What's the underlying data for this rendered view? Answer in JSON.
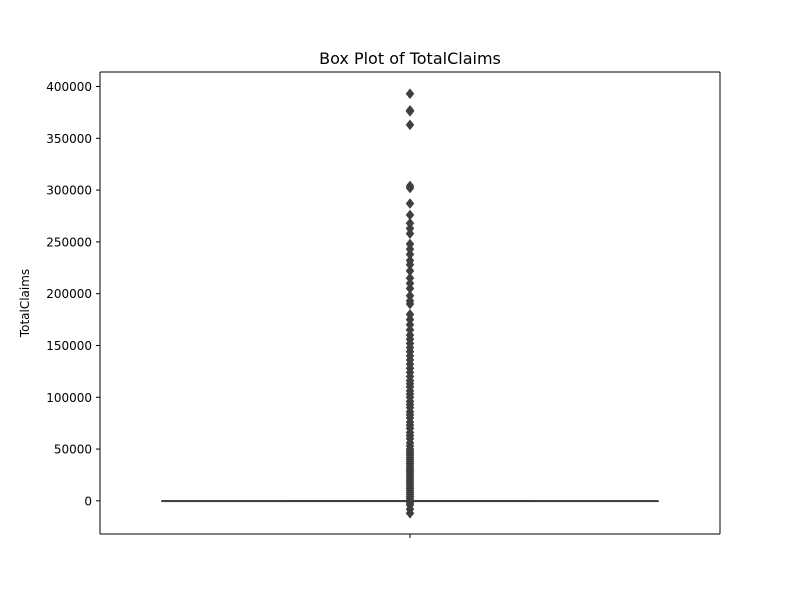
{
  "chart_data": {
    "type": "box",
    "title": "Box Plot of TotalClaims",
    "xlabel": "",
    "ylabel": "TotalClaims",
    "ylim": [
      -32000,
      414000
    ],
    "yticks": [
      0,
      50000,
      100000,
      150000,
      200000,
      250000,
      300000,
      350000,
      400000
    ],
    "ytick_labels": [
      "0",
      "50000",
      "100000",
      "150000",
      "200000",
      "250000",
      "300000",
      "350000",
      "400000"
    ],
    "xticks": [
      ""
    ],
    "grid": false,
    "legend": false,
    "box": {
      "q1": 0,
      "median": 0,
      "q3": 0,
      "whisker_low": 0,
      "whisker_high": 0
    },
    "outliers": [
      -12000,
      -8000,
      -4000,
      -2000,
      2000,
      4000,
      6000,
      8000,
      10000,
      12000,
      14000,
      16000,
      18000,
      20000,
      22000,
      24000,
      26000,
      28000,
      30000,
      32000,
      34000,
      36000,
      38000,
      40000,
      42000,
      44000,
      46000,
      48000,
      50000,
      53000,
      56000,
      60000,
      63000,
      66000,
      70000,
      73000,
      76000,
      80000,
      83000,
      86000,
      90000,
      93000,
      96000,
      100000,
      103000,
      106000,
      110000,
      113000,
      116000,
      120000,
      124000,
      128000,
      132000,
      136000,
      140000,
      144000,
      148000,
      152000,
      156000,
      160000,
      165000,
      170000,
      175000,
      180000,
      190000,
      193000,
      198000,
      205000,
      210000,
      215000,
      222000,
      228000,
      232000,
      238000,
      243000,
      248000,
      258000,
      263000,
      268000,
      276000,
      287000,
      302000,
      304000,
      363000,
      376000,
      377000,
      393000
    ],
    "colors": {
      "box_line": "#3f3f3f",
      "outlier": "#3f3f3f",
      "axes": "#000000",
      "background": "#ffffff"
    }
  }
}
